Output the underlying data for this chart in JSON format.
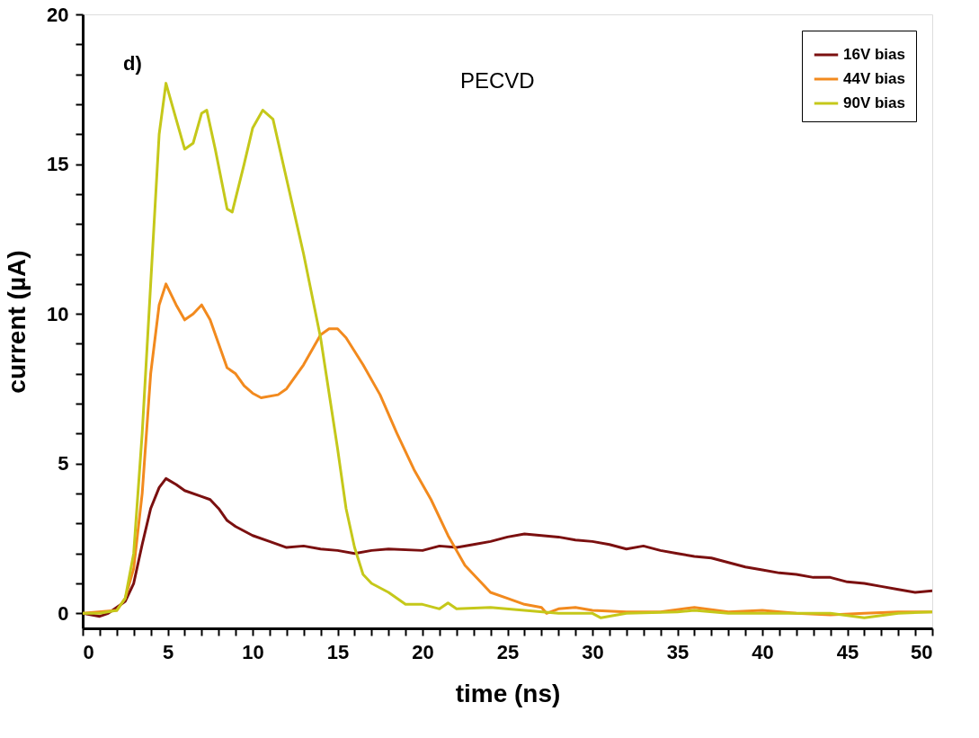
{
  "chart_data": {
    "type": "line",
    "xlabel": "time (ns)",
    "ylabel": "current (µA)",
    "annotations": [
      "d)",
      "PECVD"
    ],
    "xlim": [
      0,
      50
    ],
    "ylim": [
      -0.5,
      20
    ],
    "xticks": [
      0,
      {
        "value": 1,
        "label": null
      },
      {
        "value": 2,
        "label": null
      },
      {
        "value": 3,
        "label": null
      },
      {
        "value": 4,
        "label": null
      },
      5,
      {
        "value": 6,
        "label": null
      },
      {
        "value": 7,
        "label": null
      },
      {
        "value": 8,
        "label": null
      },
      {
        "value": 9,
        "label": null
      },
      10,
      {
        "value": 11,
        "label": null
      },
      {
        "value": 12,
        "label": null
      },
      {
        "value": 13,
        "label": null
      },
      {
        "value": 14,
        "label": null
      },
      15,
      {
        "value": 16,
        "label": null
      },
      {
        "value": 17,
        "label": null
      },
      {
        "value": 18,
        "label": null
      },
      {
        "value": 19,
        "label": null
      },
      20,
      {
        "value": 21,
        "label": null
      },
      {
        "value": 22,
        "label": null
      },
      {
        "value": 23,
        "label": null
      },
      {
        "value": 24,
        "label": null
      },
      25,
      {
        "value": 26,
        "label": null
      },
      {
        "value": 27,
        "label": null
      },
      {
        "value": 28,
        "label": null
      },
      {
        "value": 29,
        "label": null
      },
      30,
      {
        "value": 31,
        "label": null
      },
      {
        "value": 32,
        "label": null
      },
      {
        "value": 33,
        "label": null
      },
      {
        "value": 34,
        "label": null
      },
      35,
      {
        "value": 36,
        "label": null
      },
      {
        "value": 37,
        "label": null
      },
      {
        "value": 38,
        "label": null
      },
      {
        "value": 39,
        "label": null
      },
      40,
      {
        "value": 41,
        "label": null
      },
      {
        "value": 42,
        "label": null
      },
      {
        "value": 43,
        "label": null
      },
      {
        "value": 44,
        "label": null
      },
      45,
      {
        "value": 46,
        "label": null
      },
      {
        "value": 47,
        "label": null
      },
      {
        "value": 48,
        "label": null
      },
      {
        "value": 49,
        "label": null
      },
      50
    ],
    "yticks": [
      0,
      {
        "value": 1,
        "label": null
      },
      {
        "value": 2,
        "label": null
      },
      {
        "value": 3,
        "label": null
      },
      {
        "value": 4,
        "label": null
      },
      5,
      {
        "value": 6,
        "label": null
      },
      {
        "value": 7,
        "label": null
      },
      {
        "value": 8,
        "label": null
      },
      {
        "value": 9,
        "label": null
      },
      10,
      {
        "value": 11,
        "label": null
      },
      {
        "value": 12,
        "label": null
      },
      {
        "value": 13,
        "label": null
      },
      {
        "value": 14,
        "label": null
      },
      15,
      {
        "value": 16,
        "label": null
      },
      {
        "value": 17,
        "label": null
      },
      {
        "value": 18,
        "label": null
      },
      {
        "value": 19,
        "label": null
      },
      20
    ],
    "grid": false,
    "legend": "top right",
    "series": [
      {
        "name": "16V bias",
        "color": "#7b1010",
        "x": [
          0,
          1,
          1.5,
          2,
          2.5,
          3,
          3.5,
          4,
          4.5,
          4.9,
          5.5,
          6,
          7,
          7.5,
          8,
          8.5,
          9,
          10,
          11,
          12,
          13,
          14,
          15,
          16,
          17,
          18,
          20,
          21,
          22,
          23,
          24,
          25,
          26,
          27,
          28,
          29,
          30,
          31,
          32,
          33,
          34,
          35,
          36,
          37,
          38,
          39,
          40,
          41,
          42,
          43,
          44,
          45,
          46,
          47,
          48,
          49,
          50
        ],
        "values": [
          0,
          -0.1,
          0,
          0.2,
          0.4,
          1,
          2.3,
          3.5,
          4.2,
          4.5,
          4.3,
          4.1,
          3.9,
          3.8,
          3.5,
          3.1,
          2.9,
          2.6,
          2.4,
          2.2,
          2.25,
          2.15,
          2.1,
          2.0,
          2.1,
          2.15,
          2.1,
          2.25,
          2.2,
          2.3,
          2.4,
          2.55,
          2.65,
          2.6,
          2.55,
          2.45,
          2.4,
          2.3,
          2.15,
          2.25,
          2.1,
          2.0,
          1.9,
          1.85,
          1.7,
          1.55,
          1.45,
          1.35,
          1.3,
          1.2,
          1.2,
          1.05,
          1.0,
          0.9,
          0.8,
          0.7,
          0.75
        ]
      },
      {
        "name": "44V bias",
        "color": "#f28a1e",
        "x": [
          0,
          2,
          2.5,
          3,
          3.5,
          4,
          4.5,
          4.9,
          5.5,
          6,
          6.5,
          7,
          7.5,
          8,
          8.5,
          9,
          9.5,
          10,
          10.5,
          11.5,
          12,
          13,
          14,
          14.5,
          15,
          15.5,
          16.5,
          17.5,
          18.5,
          19.5,
          20.5,
          21.5,
          22.5,
          23.5,
          24,
          25,
          26,
          27,
          27.3,
          28,
          29,
          30,
          32,
          34,
          36,
          38,
          40,
          42,
          44,
          46,
          48,
          50
        ],
        "values": [
          0,
          0.1,
          0.5,
          1.5,
          4,
          8,
          10.3,
          11,
          10.3,
          9.8,
          10,
          10.3,
          9.8,
          9,
          8.2,
          8,
          7.6,
          7.35,
          7.2,
          7.3,
          7.5,
          8.3,
          9.3,
          9.5,
          9.5,
          9.2,
          8.3,
          7.3,
          6,
          4.8,
          3.8,
          2.6,
          1.6,
          1,
          0.7,
          0.5,
          0.3,
          0.2,
          0,
          0.15,
          0.2,
          0.1,
          0.05,
          0.05,
          0.2,
          0.05,
          0.1,
          0,
          -0.05,
          0,
          0.05,
          0.05
        ]
      },
      {
        "name": "90V bias",
        "color": "#c5c81a",
        "x": [
          0,
          1,
          2,
          2.5,
          3,
          3.5,
          4,
          4.5,
          4.9,
          5.5,
          6,
          6.5,
          7,
          7.3,
          7.8,
          8.5,
          8.8,
          9.5,
          10,
          10.6,
          11.2,
          12,
          13,
          14,
          15,
          15.5,
          16,
          16.5,
          17,
          18,
          19,
          20,
          21,
          21.5,
          22,
          24,
          26,
          28,
          30,
          30.5,
          32,
          35,
          36,
          38,
          40,
          42,
          44,
          46,
          48,
          50
        ],
        "values": [
          0,
          0,
          0.1,
          0.5,
          2,
          6,
          11,
          16,
          17.7,
          16.5,
          15.5,
          15.7,
          16.7,
          16.8,
          15.5,
          13.5,
          13.4,
          15,
          16.2,
          16.8,
          16.5,
          14.5,
          12,
          9.2,
          5.5,
          3.5,
          2.2,
          1.3,
          1.0,
          0.7,
          0.3,
          0.3,
          0.15,
          0.35,
          0.15,
          0.2,
          0.1,
          0,
          0,
          -0.15,
          0,
          0.05,
          0.1,
          0,
          0,
          0,
          0,
          -0.15,
          0,
          0.05
        ]
      }
    ]
  }
}
